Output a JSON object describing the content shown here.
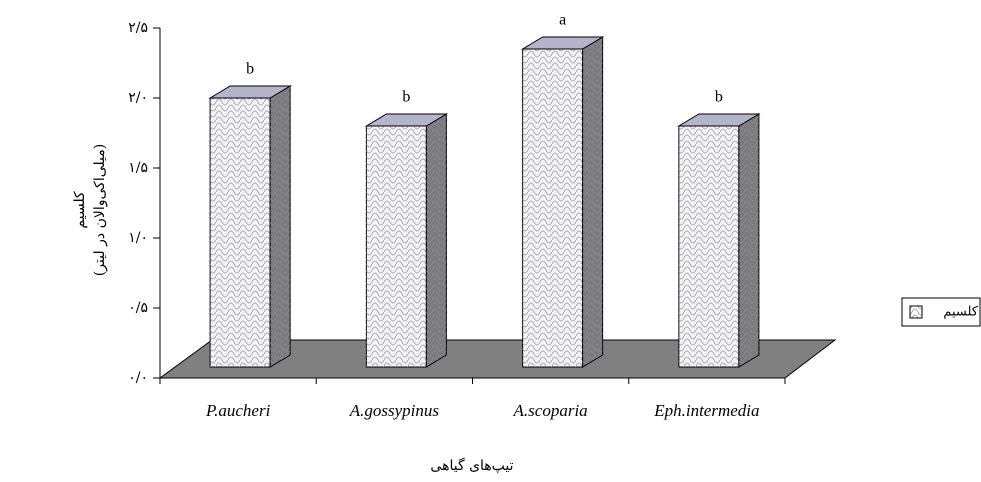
{
  "chart_data": {
    "type": "bar3d",
    "categories": [
      "P.aucheri",
      "A.gossypinus",
      "A.scoparia",
      "Eph.intermedia"
    ],
    "series": [
      {
        "name": "کلسیم",
        "color": "#f2f2f8",
        "values": [
          2.0,
          1.8,
          2.35,
          1.8
        ]
      }
    ],
    "letters": [
      "b",
      "b",
      "a",
      "b"
    ],
    "y_label": [
      "کلسیم",
      "(میلی‌اکی‌والان در لیتر)"
    ],
    "x_label": "تیپ‌های گیاهی",
    "ylim": [
      0,
      2.5
    ],
    "yticks": [
      {
        "value": 0,
        "label": "۰/۰"
      },
      {
        "value": 0.5,
        "label": "۰/۵"
      },
      {
        "value": 1,
        "label": "۱/۰"
      },
      {
        "value": 1.5,
        "label": "۱/۵"
      },
      {
        "value": 2,
        "label": "۲/۰"
      },
      {
        "value": 2.5,
        "label": "۲/۵"
      }
    ],
    "legend": "right"
  }
}
